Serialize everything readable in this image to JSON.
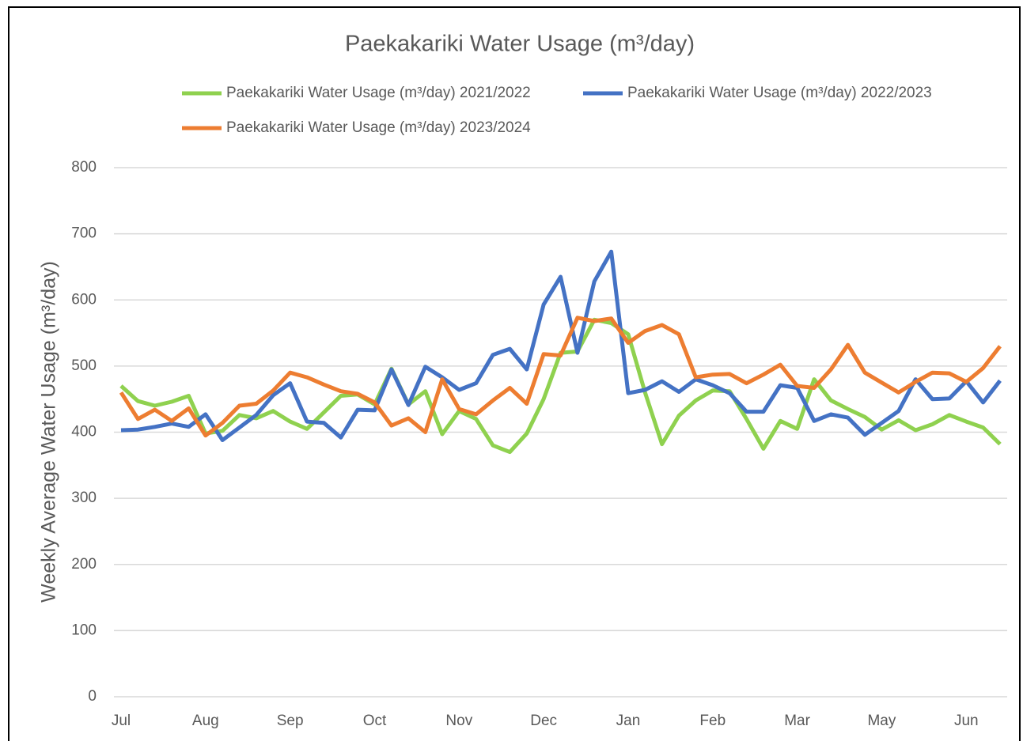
{
  "chart_data": {
    "type": "line",
    "title": "Paekakariki Water Usage (m³/day)",
    "y_label": "Weekly Average Water Usage (m³/day)",
    "categories": [
      "Jul",
      null,
      null,
      null,
      null,
      "Aug",
      null,
      null,
      null,
      null,
      "Sep",
      null,
      null,
      null,
      null,
      "Oct",
      null,
      null,
      null,
      null,
      "Nov",
      null,
      null,
      null,
      null,
      "Dec",
      null,
      null,
      null,
      null,
      "Jan",
      null,
      null,
      null,
      null,
      "Feb",
      null,
      null,
      null,
      null,
      "Mar",
      null,
      null,
      null,
      null,
      "May",
      null,
      null,
      null,
      null,
      "Jun",
      null,
      null
    ],
    "series": [
      {
        "name": "Paekakariki Water Usage (m³/day) 2021/2022",
        "color": "#8fd14f",
        "values": [
          470,
          447,
          440,
          446,
          455,
          398,
          402,
          426,
          421,
          432,
          416,
          405,
          430,
          455,
          457,
          442,
          496,
          442,
          462,
          397,
          432,
          420,
          380,
          370,
          398,
          450,
          520,
          522,
          570,
          565,
          548,
          460,
          382,
          425,
          448,
          463,
          462,
          420,
          375,
          417,
          405,
          480,
          448,
          435,
          423,
          404,
          418,
          403,
          412,
          426,
          416,
          407,
          382
        ]
      },
      {
        "name": "Paekakariki Water Usage (m³/day) 2022/2023",
        "color": "#4472c4",
        "values": [
          403,
          404,
          408,
          413,
          408,
          427,
          388,
          407,
          426,
          456,
          474,
          416,
          414,
          392,
          434,
          433,
          495,
          441,
          499,
          483,
          464,
          474,
          517,
          526,
          495,
          593,
          635,
          520,
          628,
          673,
          459,
          464,
          477,
          461,
          480,
          471,
          459,
          431,
          431,
          471,
          467,
          417,
          427,
          422,
          396,
          414,
          432,
          480,
          450,
          451,
          477,
          445,
          478
        ]
      },
      {
        "name": "Paekakariki Water Usage (m³/day) 2023/2024",
        "color": "#ed7d31",
        "values": [
          460,
          420,
          434,
          417,
          436,
          395,
          414,
          440,
          443,
          463,
          490,
          483,
          472,
          462,
          458,
          445,
          410,
          421,
          400,
          480,
          435,
          427,
          448,
          467,
          443,
          518,
          516,
          573,
          568,
          572,
          535,
          553,
          562,
          548,
          483,
          487,
          488,
          474,
          487,
          502,
          470,
          467,
          495,
          532,
          490,
          475,
          460,
          476,
          490,
          489,
          476,
          497,
          530
        ]
      }
    ],
    "ylim": [
      0,
      800
    ],
    "yticks": [
      0,
      100,
      200,
      300,
      400,
      500,
      600,
      700,
      800
    ],
    "grid": true
  }
}
